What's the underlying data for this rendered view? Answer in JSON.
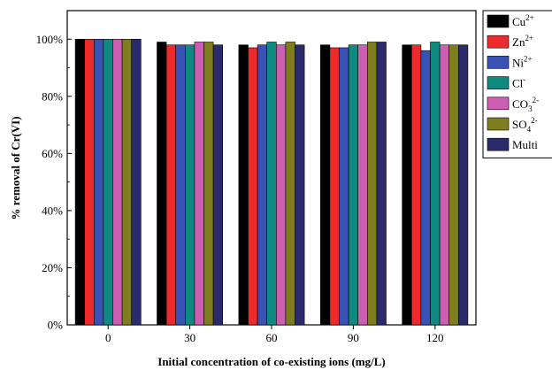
{
  "chart_data": {
    "type": "bar",
    "categories": [
      "0",
      "30",
      "60",
      "90",
      "120"
    ],
    "series": [
      {
        "name": "Cu",
        "sup": "2+",
        "values": [
          100,
          99,
          98,
          98,
          98
        ],
        "color": "#000000"
      },
      {
        "name": "Zn",
        "sup": "2+",
        "values": [
          100,
          98,
          97,
          97,
          98
        ],
        "color": "#ee2a2a"
      },
      {
        "name": "Ni",
        "sup": "2+",
        "values": [
          100,
          98,
          98,
          97,
          96
        ],
        "color": "#3a52b4"
      },
      {
        "name": "Cl",
        "sup": "-",
        "values": [
          100,
          98,
          99,
          98,
          99
        ],
        "color": "#0f8a80"
      },
      {
        "name": "CO",
        "sub": "3",
        "sup": "2-",
        "values": [
          100,
          99,
          98,
          98,
          98
        ],
        "color": "#cc5fb2"
      },
      {
        "name": "SO",
        "sub": "4",
        "sup": "2-",
        "values": [
          100,
          99,
          99,
          99,
          98
        ],
        "color": "#7f7e1f"
      },
      {
        "name": "Multi",
        "values": [
          100,
          98,
          98,
          99,
          98
        ],
        "color": "#2b2a6d"
      }
    ],
    "xlabel": "Initial concentration of co-existing ions (mg/L)",
    "ylabel": "% removal of Cr(VI)",
    "ylim": [
      0,
      110
    ],
    "yticks": [
      "0%",
      "20%",
      "40%",
      "60%",
      "80%",
      "100%"
    ],
    "ytick_values": [
      0,
      20,
      40,
      60,
      80,
      100
    ],
    "grid": false,
    "legend_position": "top-right"
  }
}
